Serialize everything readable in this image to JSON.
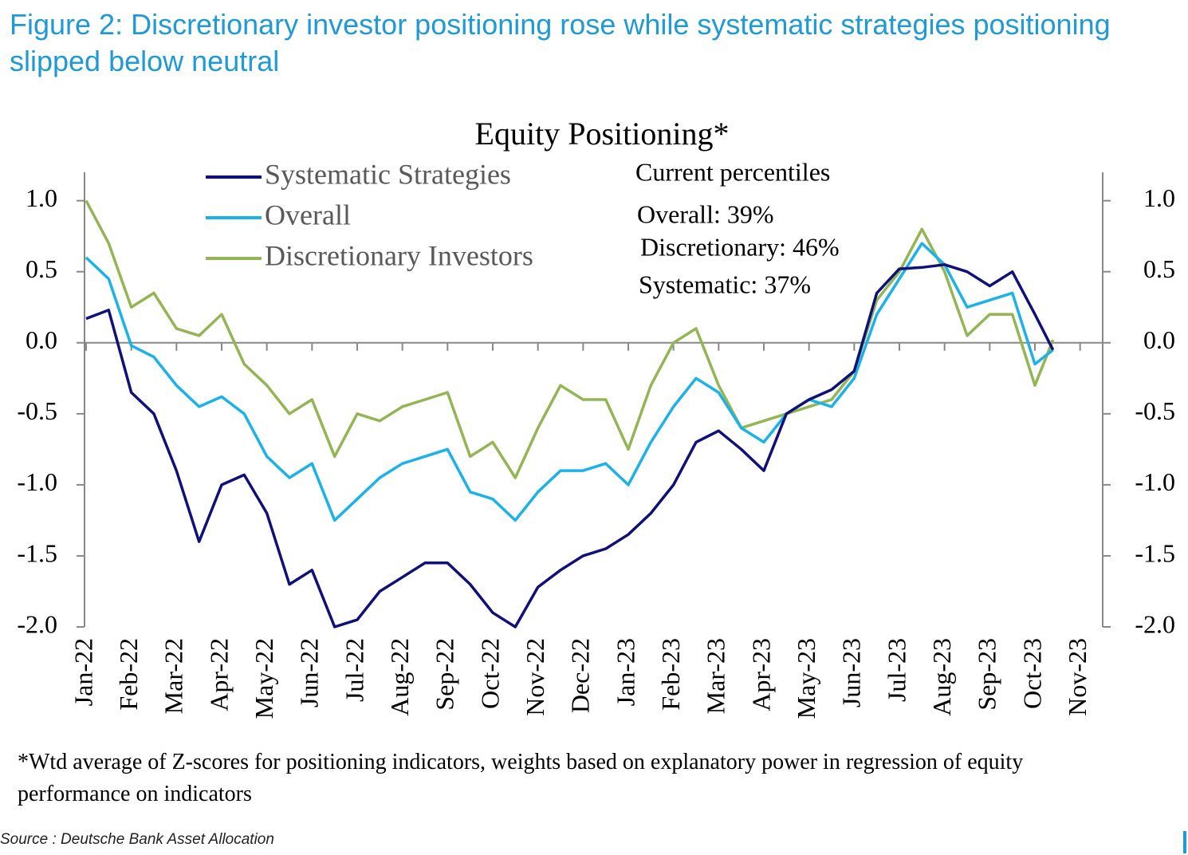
{
  "figure_title": "Figure 2: Discretionary investor positioning rose while systematic strategies positioning slipped below neutral",
  "footnote": "*Wtd average of Z-scores for positioning indicators, weights based on explanatory power in regression of equity performance on indicators",
  "source": "Source : Deutsche Bank Asset Allocation",
  "chart_data": {
    "type": "line",
    "title": "Equity Positioning*",
    "annotations": [
      "Current percentiles",
      "Overall: 39%",
      "Discretionary: 46%",
      "Systematic: 37%"
    ],
    "x": [
      0,
      0.5,
      1,
      1.5,
      2,
      2.5,
      3,
      3.5,
      4,
      4.5,
      5,
      5.5,
      6,
      6.5,
      7,
      7.5,
      8,
      8.5,
      9,
      9.5,
      10,
      10.5,
      11,
      11.5,
      12,
      12.5,
      13,
      13.5,
      14,
      14.5,
      15,
      15.5,
      16,
      16.5,
      17,
      17.5,
      18,
      18.5,
      19,
      19.5,
      20,
      20.5,
      21,
      21.4
    ],
    "xlim": [
      0,
      22.5
    ],
    "xticks": [
      {
        "value": 0,
        "label": "Jan-22"
      },
      {
        "value": 1,
        "label": "Feb-22"
      },
      {
        "value": 2,
        "label": "Mar-22"
      },
      {
        "value": 3,
        "label": "Apr-22"
      },
      {
        "value": 4,
        "label": "May-22"
      },
      {
        "value": 5,
        "label": "Jun-22"
      },
      {
        "value": 6,
        "label": "Jul-22"
      },
      {
        "value": 7,
        "label": "Aug-22"
      },
      {
        "value": 8,
        "label": "Sep-22"
      },
      {
        "value": 9,
        "label": "Oct-22"
      },
      {
        "value": 10,
        "label": "Nov-22"
      },
      {
        "value": 11,
        "label": "Dec-22"
      },
      {
        "value": 12,
        "label": "Jan-23"
      },
      {
        "value": 13,
        "label": "Feb-23"
      },
      {
        "value": 14,
        "label": "Mar-23"
      },
      {
        "value": 15,
        "label": "Apr-23"
      },
      {
        "value": 16,
        "label": "May-23"
      },
      {
        "value": 17,
        "label": "Jun-23"
      },
      {
        "value": 18,
        "label": "Jul-23"
      },
      {
        "value": 19,
        "label": "Aug-23"
      },
      {
        "value": 20,
        "label": "Sep-23"
      },
      {
        "value": 21,
        "label": "Oct-23"
      },
      {
        "value": 22,
        "label": "Nov-23"
      }
    ],
    "ylim": [
      -2,
      1.2
    ],
    "yticks": [
      {
        "value": 1,
        "label": "1.0"
      },
      {
        "value": 0.5,
        "label": "0.5"
      },
      {
        "value": 0,
        "label": "0.0"
      },
      {
        "value": -0.5,
        "label": "-0.5"
      },
      {
        "value": -1,
        "label": "-1.0"
      },
      {
        "value": -1.5,
        "label": "-1.5"
      },
      {
        "value": -2,
        "label": "-2.0"
      }
    ],
    "series": [
      {
        "name": "Systematic Strategies",
        "color": "#10107a",
        "values": [
          0.17,
          0.23,
          -0.35,
          -0.5,
          -0.9,
          -1.4,
          -1.0,
          -0.93,
          -1.2,
          -1.7,
          -1.6,
          -2.0,
          -1.95,
          -1.75,
          -1.65,
          -1.55,
          -1.55,
          -1.7,
          -1.9,
          -2.0,
          -1.72,
          -1.6,
          -1.5,
          -1.45,
          -1.35,
          -1.2,
          -1.0,
          -0.7,
          -0.62,
          -0.75,
          -0.9,
          -0.5,
          -0.4,
          -0.33,
          -0.2,
          0.35,
          0.52,
          0.53,
          0.55,
          0.5,
          0.4,
          0.5,
          0.2,
          -0.05
        ]
      },
      {
        "name": "Overall",
        "color": "#1ab2e8",
        "values": [
          0.6,
          0.45,
          -0.02,
          -0.1,
          -0.3,
          -0.45,
          -0.38,
          -0.5,
          -0.8,
          -0.95,
          -0.85,
          -1.25,
          -1.1,
          -0.95,
          -0.85,
          -0.8,
          -0.75,
          -1.05,
          -1.1,
          -1.25,
          -1.05,
          -0.9,
          -0.9,
          -0.85,
          -1.0,
          -0.7,
          -0.45,
          -0.25,
          -0.35,
          -0.6,
          -0.7,
          -0.5,
          -0.4,
          -0.45,
          -0.25,
          0.2,
          0.45,
          0.7,
          0.55,
          0.25,
          0.3,
          0.35,
          -0.15,
          -0.05
        ]
      },
      {
        "name": "Discretionary Investors",
        "color": "#93b554",
        "values": [
          1.0,
          0.7,
          0.25,
          0.35,
          0.1,
          0.05,
          0.2,
          -0.15,
          -0.3,
          -0.5,
          -0.4,
          -0.8,
          -0.5,
          -0.55,
          -0.45,
          -0.4,
          -0.35,
          -0.8,
          -0.7,
          -0.95,
          -0.6,
          -0.3,
          -0.4,
          -0.4,
          -0.75,
          -0.3,
          0.0,
          0.1,
          -0.3,
          -0.6,
          -0.55,
          -0.5,
          -0.45,
          -0.4,
          -0.2,
          0.3,
          0.5,
          0.8,
          0.5,
          0.05,
          0.2,
          0.2,
          -0.3,
          0.02
        ]
      }
    ]
  }
}
